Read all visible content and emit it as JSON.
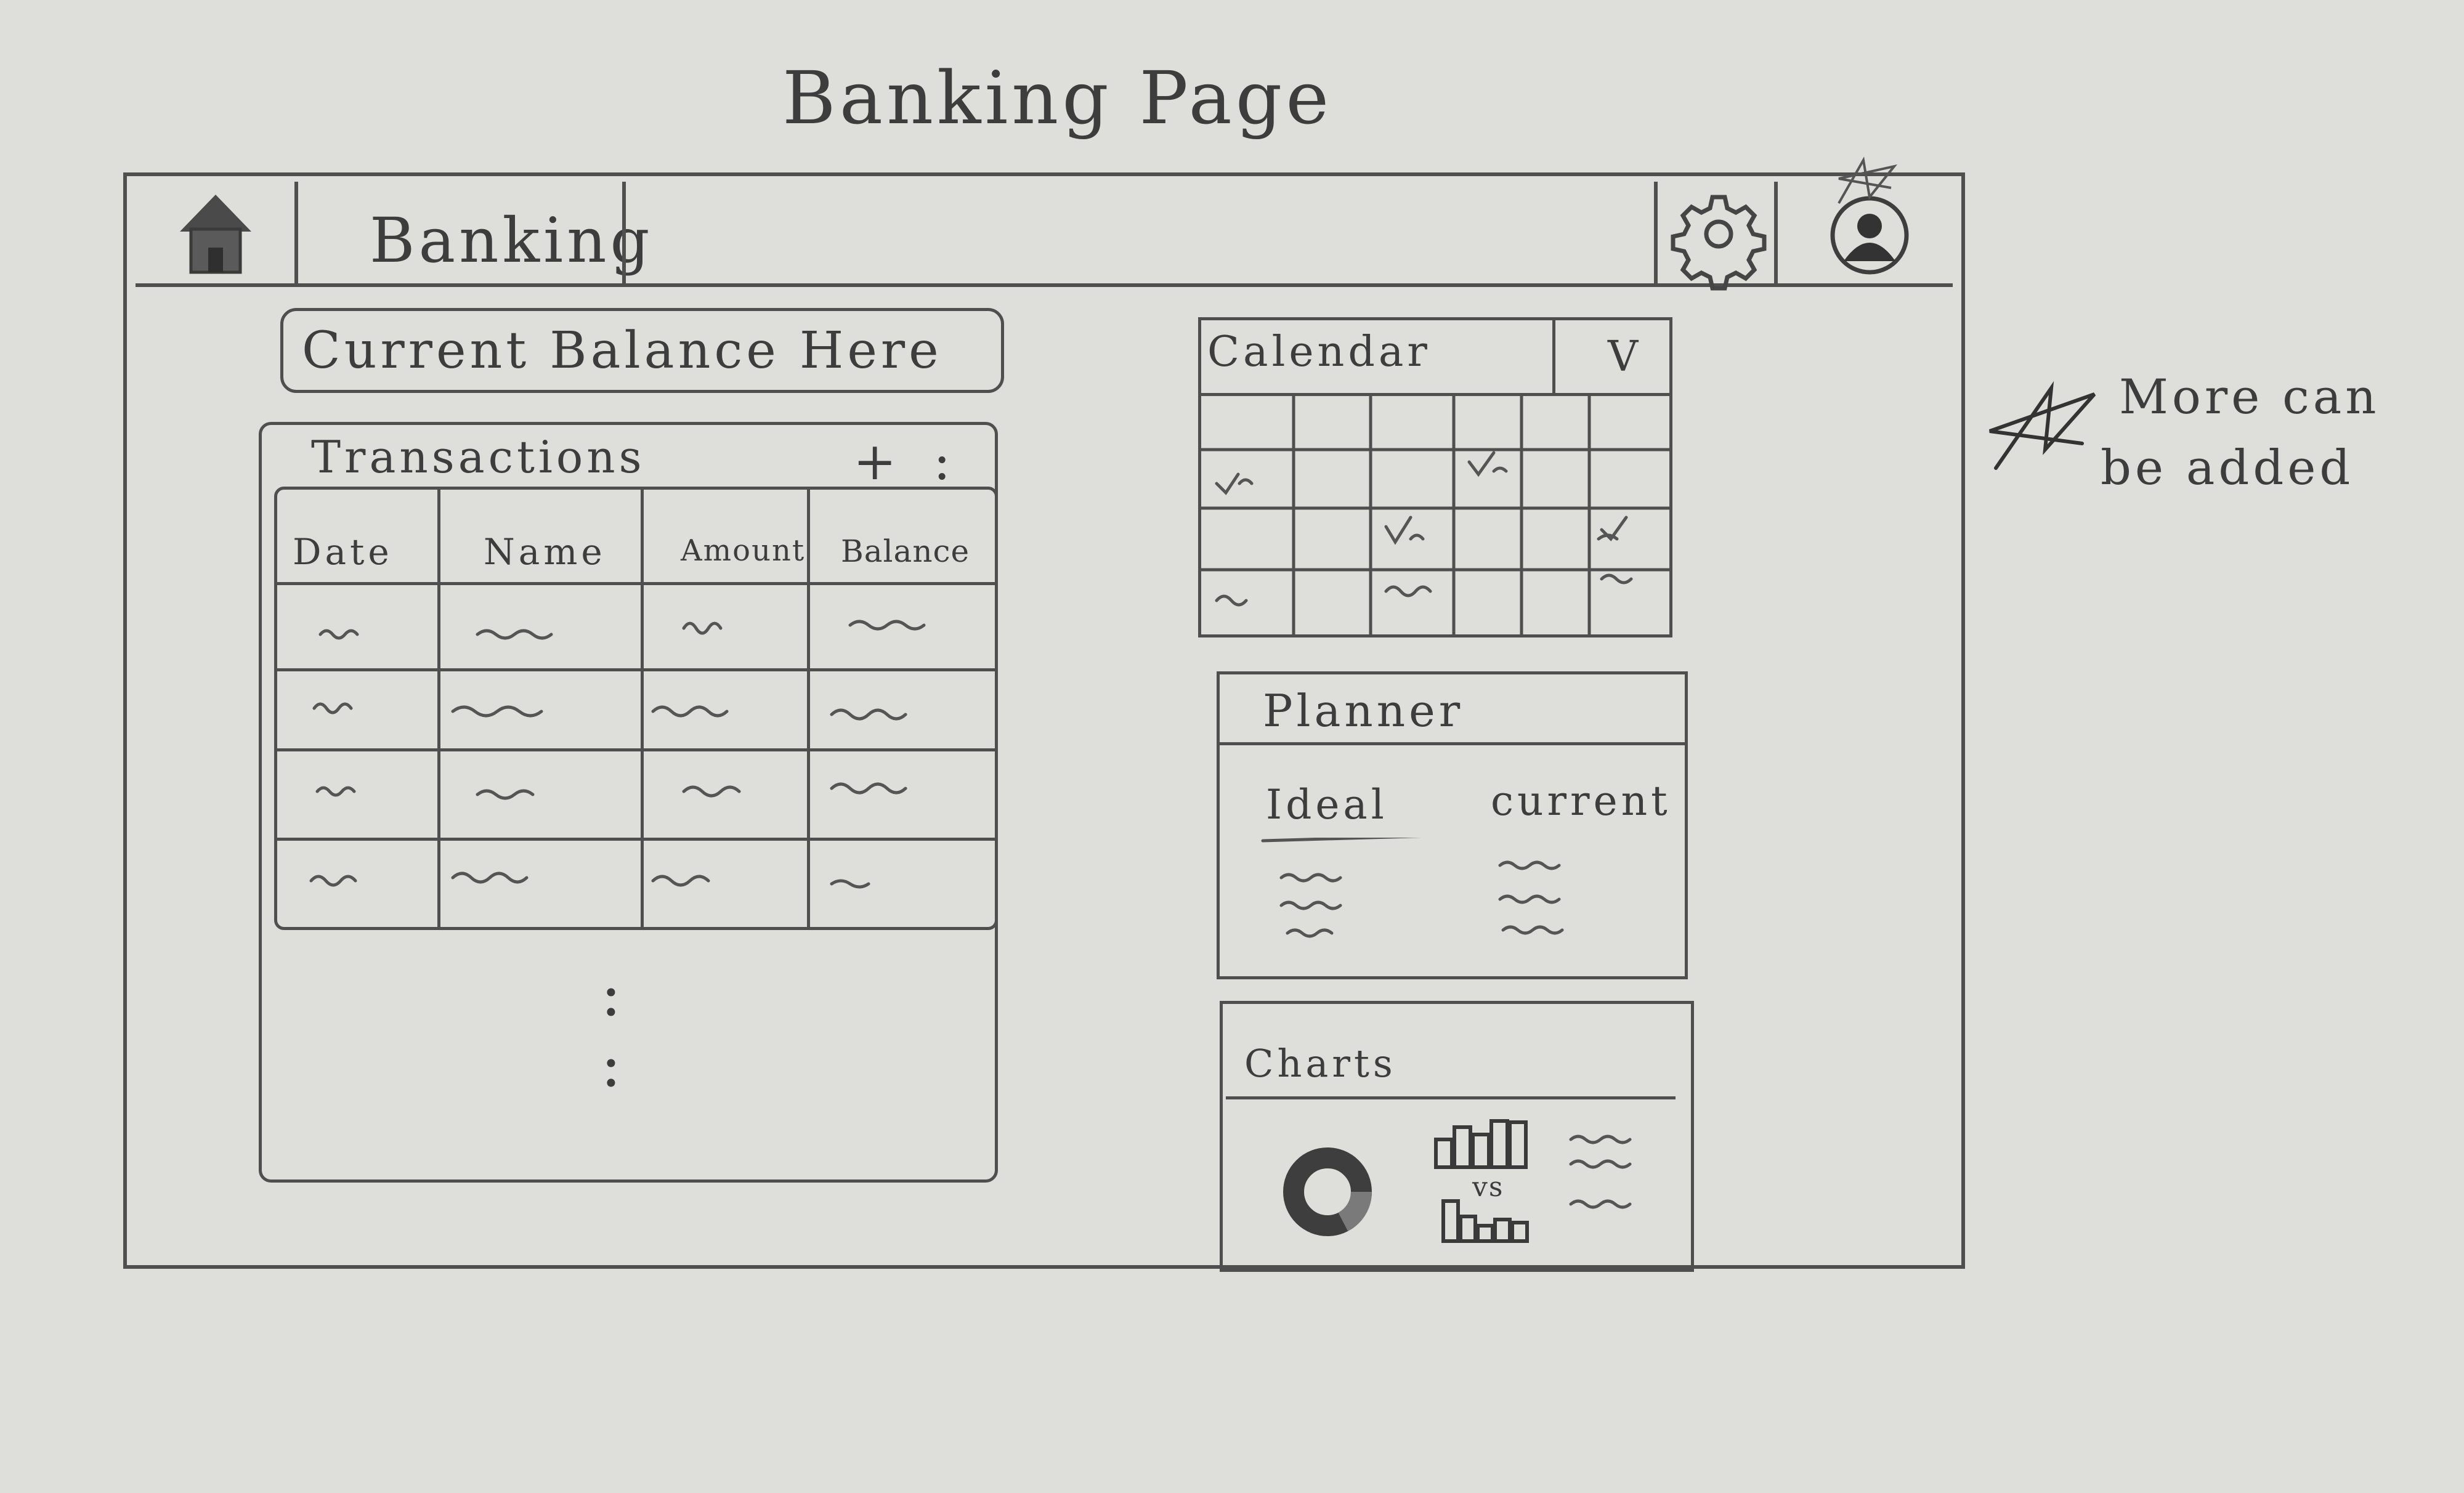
{
  "sheet_title": "Banking Page",
  "header": {
    "title": "Banking"
  },
  "balance": {
    "label": "Current Balance Here"
  },
  "transactions": {
    "title": "Transactions",
    "add_label": "+",
    "more_label": ":",
    "columns": [
      "Date",
      "Name",
      "Amount",
      "Balance"
    ],
    "ellipsis": ":"
  },
  "calendar": {
    "title": "Calendar",
    "dropdown_label": "V"
  },
  "planner": {
    "title": "Planner",
    "col_ideal": "Ideal",
    "col_current": "current"
  },
  "charts": {
    "title": "Charts",
    "vs_label": "vs"
  },
  "note": {
    "line1": "More can",
    "line2": "be added"
  },
  "icons": {
    "home": "home-icon",
    "settings": "gear-icon",
    "profile": "avatar-icon",
    "star": "star-icon",
    "donut": "donut-chart-icon",
    "bars": "bar-chart-icon"
  }
}
